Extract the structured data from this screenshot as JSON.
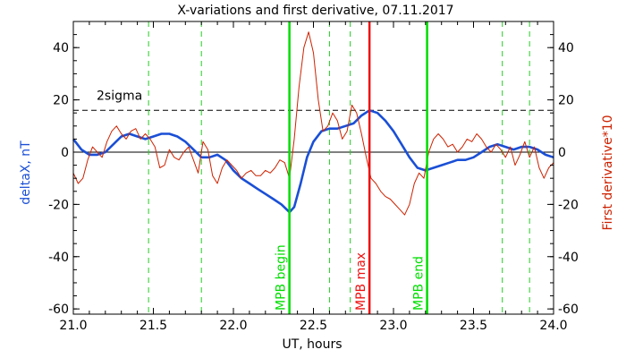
{
  "chart_data": {
    "type": "line",
    "title": "X-variations and first derivative, 07.11.2017",
    "xlabel": "UT, hours",
    "ylabel_left": "deltaX, nT",
    "ylabel_right": "First derivative*10",
    "xlim": [
      21.0,
      24.0
    ],
    "ylim": [
      -62,
      50
    ],
    "x_ticks": [
      21.0,
      21.5,
      22.0,
      22.5,
      23.0,
      23.5,
      24.0
    ],
    "x_tick_labels": [
      "21.0",
      "21.5",
      "22.0",
      "22.5",
      "23.0",
      "23.5",
      "24.0"
    ],
    "y_ticks": [
      -60,
      -40,
      -20,
      0,
      20,
      40
    ],
    "y_tick_labels": [
      "-60",
      "-40",
      "-20",
      "0",
      "20",
      "40"
    ],
    "zero_line": 0,
    "sigma_line": {
      "value": 16,
      "label": "2sigma"
    },
    "green_dashed_x": [
      21.47,
      21.8,
      22.6,
      22.73,
      23.68,
      23.85
    ],
    "markers": [
      {
        "x": 22.35,
        "label": "MPB begin",
        "color": "#00dd00"
      },
      {
        "x": 22.85,
        "label": "MPB max",
        "color": "#ee1111"
      },
      {
        "x": 23.21,
        "label": "MPB end",
        "color": "#00dd00"
      }
    ],
    "series": [
      {
        "color": "#1a4fd6",
        "x": [
          21.0,
          21.05,
          21.1,
          21.15,
          21.2,
          21.25,
          21.3,
          21.35,
          21.4,
          21.45,
          21.5,
          21.55,
          21.6,
          21.65,
          21.7,
          21.75,
          21.8,
          21.85,
          21.9,
          21.95,
          22.0,
          22.05,
          22.1,
          22.15,
          22.2,
          22.25,
          22.3,
          22.35,
          22.38,
          22.42,
          22.46,
          22.5,
          22.55,
          22.6,
          22.65,
          22.7,
          22.75,
          22.8,
          22.85,
          22.9,
          22.95,
          23.0,
          23.05,
          23.1,
          23.15,
          23.2,
          23.25,
          23.3,
          23.35,
          23.4,
          23.45,
          23.5,
          23.55,
          23.6,
          23.65,
          23.7,
          23.75,
          23.8,
          23.85,
          23.9,
          23.95,
          24.0
        ],
        "values": [
          5,
          1,
          -1,
          -1,
          0,
          3,
          6,
          7,
          6,
          5,
          6,
          7,
          7,
          6,
          4,
          1,
          -2,
          -2,
          -1,
          -3,
          -7,
          -10,
          -12,
          -14,
          -16,
          -18,
          -20,
          -23,
          -21,
          -12,
          -2,
          4,
          8,
          9,
          9,
          10,
          11,
          14,
          16,
          15,
          12,
          8,
          3,
          -2,
          -6,
          -7,
          -6,
          -5,
          -4,
          -3,
          -3,
          -2,
          0,
          2,
          3,
          2,
          1,
          2,
          2,
          1,
          -1,
          -2
        ]
      },
      {
        "color": "#cc2200",
        "x": [
          21.0,
          21.03,
          21.06,
          21.09,
          21.12,
          21.15,
          21.18,
          21.21,
          21.24,
          21.27,
          21.3,
          21.33,
          21.36,
          21.39,
          21.42,
          21.45,
          21.48,
          21.51,
          21.54,
          21.57,
          21.6,
          21.63,
          21.66,
          21.69,
          21.72,
          21.75,
          21.78,
          21.81,
          21.84,
          21.87,
          21.9,
          21.93,
          21.96,
          21.99,
          22.02,
          22.05,
          22.08,
          22.11,
          22.14,
          22.17,
          22.2,
          22.23,
          22.26,
          22.29,
          22.32,
          22.35,
          22.38,
          22.41,
          22.44,
          22.47,
          22.5,
          22.53,
          22.56,
          22.59,
          22.62,
          22.65,
          22.68,
          22.71,
          22.74,
          22.77,
          22.8,
          22.83,
          22.86,
          22.89,
          22.92,
          22.95,
          22.98,
          23.01,
          23.04,
          23.07,
          23.1,
          23.13,
          23.16,
          23.19,
          23.22,
          23.25,
          23.28,
          23.31,
          23.34,
          23.37,
          23.4,
          23.43,
          23.46,
          23.49,
          23.52,
          23.55,
          23.58,
          23.61,
          23.64,
          23.67,
          23.7,
          23.73,
          23.76,
          23.79,
          23.82,
          23.85,
          23.88,
          23.91,
          23.94,
          23.97,
          24.0
        ],
        "values": [
          -8,
          -12,
          -10,
          -3,
          2,
          0,
          -2,
          4,
          8,
          10,
          7,
          5,
          8,
          9,
          5,
          7,
          5,
          2,
          -6,
          -5,
          1,
          -2,
          -3,
          0,
          2,
          -3,
          -8,
          4,
          1,
          -9,
          -12,
          -6,
          -3,
          -5,
          -7,
          -10,
          -8,
          -7,
          -9,
          -9,
          -7,
          -8,
          -6,
          -3,
          -4,
          -10,
          5,
          25,
          40,
          46,
          38,
          20,
          8,
          10,
          15,
          12,
          5,
          8,
          18,
          15,
          7,
          -2,
          -10,
          -12,
          -15,
          -17,
          -18,
          -20,
          -22,
          -24,
          -20,
          -12,
          -8,
          -10,
          0,
          5,
          7,
          5,
          2,
          3,
          0,
          2,
          5,
          4,
          7,
          5,
          2,
          0,
          3,
          1,
          -2,
          2,
          -5,
          -1,
          4,
          -2,
          2,
          -6,
          -10,
          -6,
          -4
        ]
      }
    ]
  }
}
